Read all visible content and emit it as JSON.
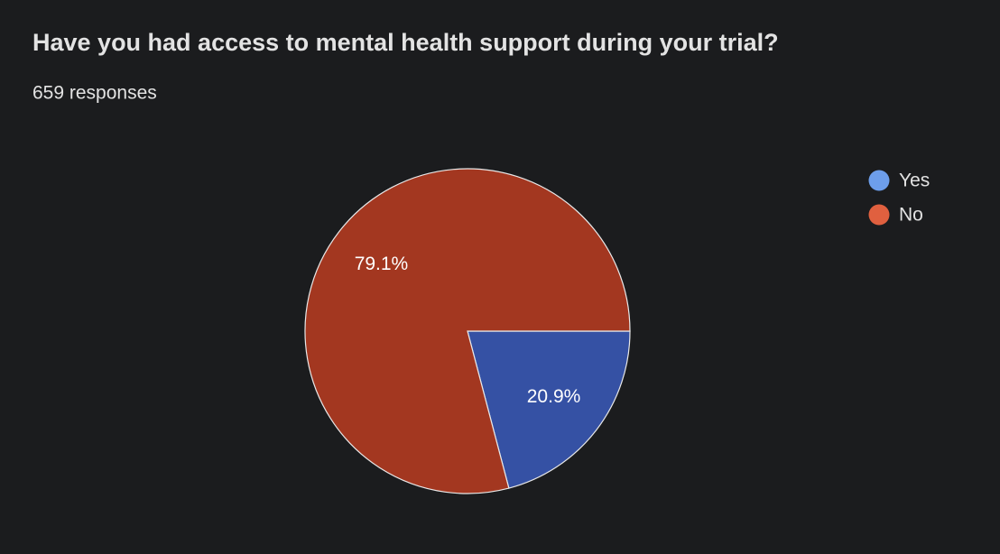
{
  "chart_data": {
    "type": "pie",
    "title": "Have you had access to mental health support during your trial?",
    "subtitle": "659 responses",
    "categories": [
      "Yes",
      "No"
    ],
    "values": [
      20.9,
      79.1
    ],
    "value_labels": [
      "20.9%",
      "79.1%"
    ],
    "colors": [
      "#3551a4",
      "#a33720"
    ],
    "legend_colors": [
      "#6d9eeb",
      "#e0603f"
    ],
    "legend": "top-right"
  }
}
